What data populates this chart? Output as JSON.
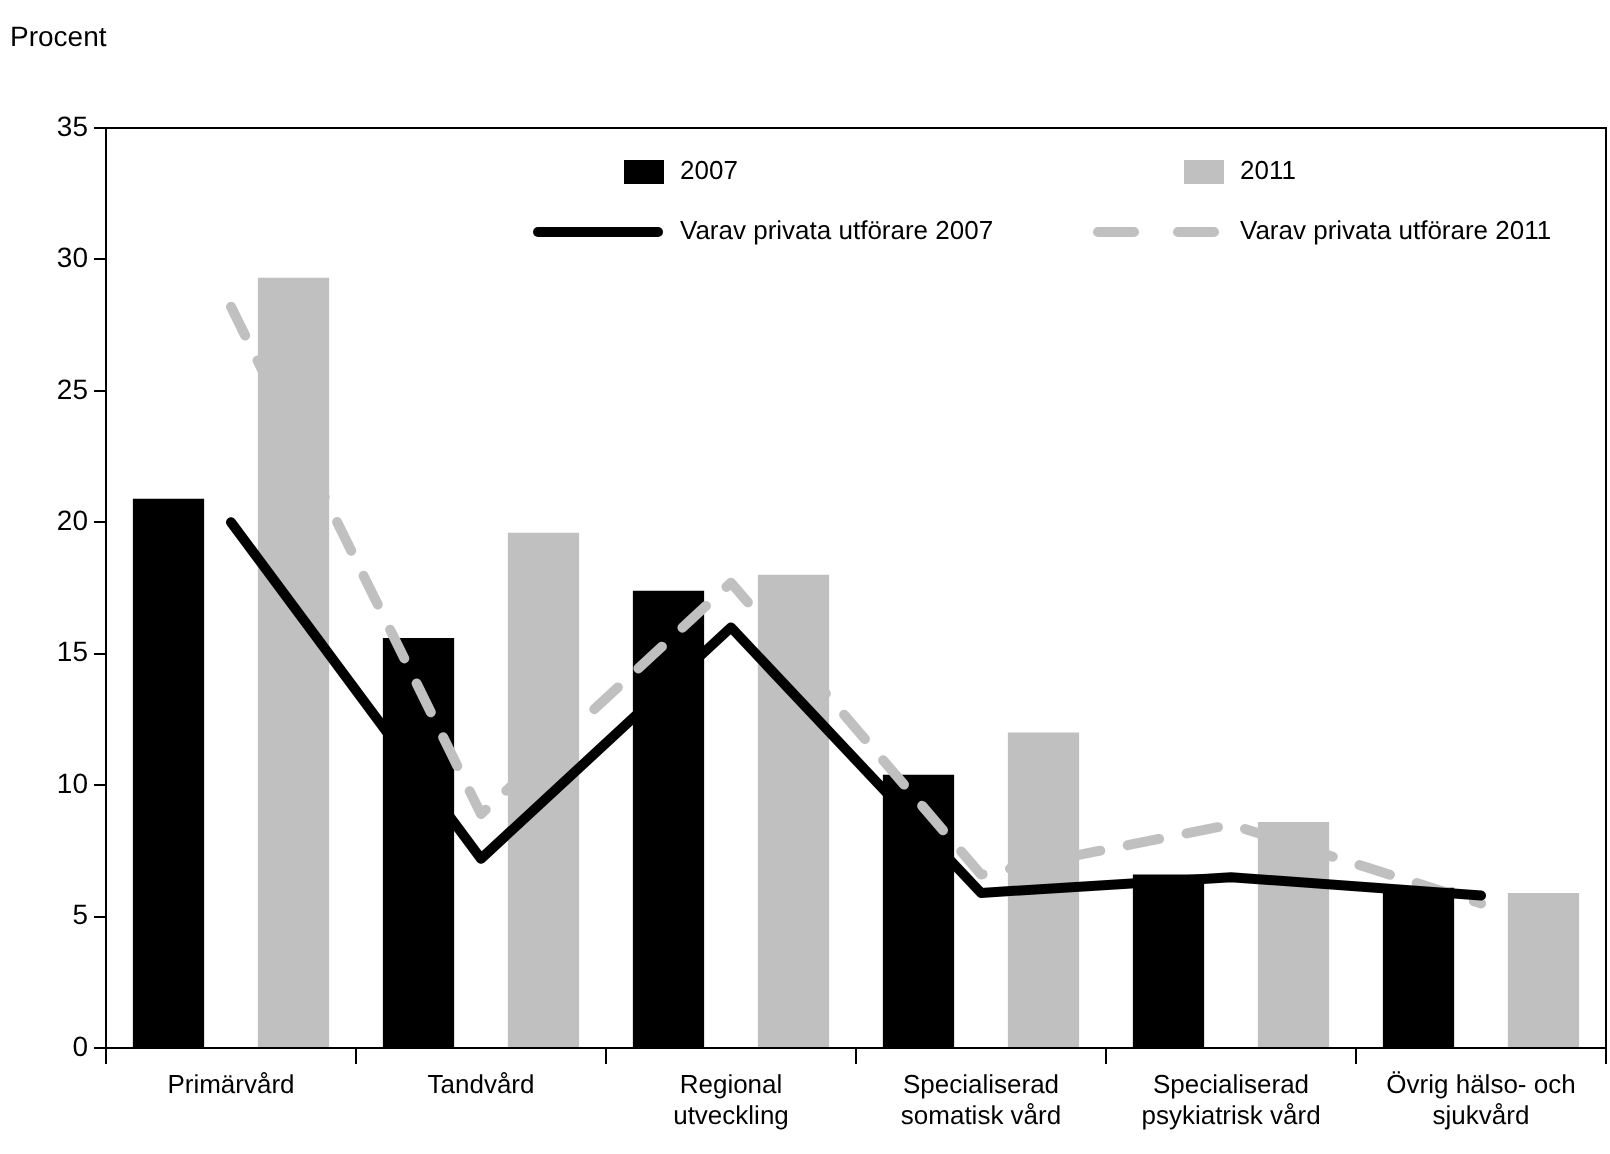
{
  "chart_data": {
    "type": "bar",
    "ylabel": "Procent",
    "categories": [
      "Primärvård",
      "Tandvård",
      "Regional utveckling",
      "Specialiserad somatisk vård",
      "Specialiserad psykiatrisk vård",
      "Övrig hälso- och sjukvård"
    ],
    "series": [
      {
        "name": "2007",
        "color": "#000000",
        "values": [
          20.9,
          15.6,
          17.4,
          10.4,
          6.6,
          6.1
        ]
      },
      {
        "name": "2011",
        "color": "#c0c0c0",
        "values": [
          29.3,
          19.6,
          18.0,
          12.0,
          8.6,
          5.9
        ]
      },
      {
        "name": "Varav privata utförare 2007",
        "type": "line",
        "color": "#000000",
        "line_style": "solid",
        "marker": "none",
        "values": [
          20.0,
          7.2,
          16.0,
          5.9,
          6.5,
          5.8
        ]
      },
      {
        "name": "Varav privata utförare 2011",
        "type": "line",
        "color": "#c0c0c0",
        "line_style": "dashed",
        "marker": "none",
        "values": [
          28.2,
          8.9,
          17.7,
          6.6,
          8.5,
          5.5
        ]
      }
    ],
    "ylim": [
      0,
      35
    ],
    "yticks": [
      0,
      5,
      10,
      15,
      20,
      25,
      30,
      35
    ],
    "grid": false,
    "legend": "top right"
  }
}
